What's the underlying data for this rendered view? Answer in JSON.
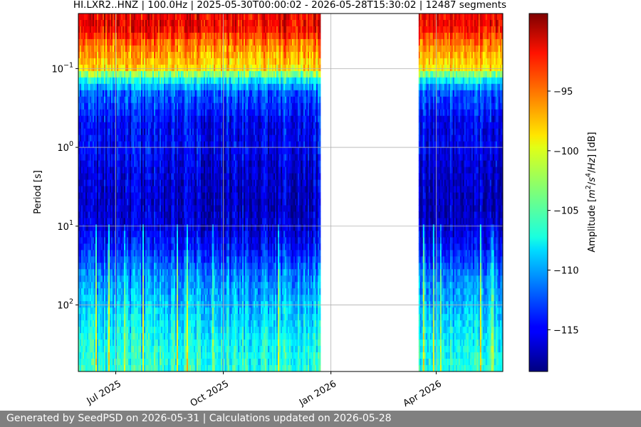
{
  "footer_text": "Generated by SeedPSD on 2026-05-31 | Calculations updated on 2026-05-28",
  "chart_data": {
    "type": "heatmap",
    "title": "HI.LXR2..HNZ | 100.0Hz | 2025-05-30T00:00:02 - 2026-05-28T15:30:02 | 12487 segments",
    "ylabel": "Period [s]",
    "xlabel": "",
    "y_scale": "log",
    "y_inverted": true,
    "ylim": [
      0.02,
      700
    ],
    "xlim": [
      "2025-05-30",
      "2026-05-28"
    ],
    "x_ticks": [
      {
        "date": "2025-07-01",
        "label": "Jul 2025"
      },
      {
        "date": "2025-10-01",
        "label": "Oct 2025"
      },
      {
        "date": "2026-01-01",
        "label": "Jan 2026"
      },
      {
        "date": "2026-04-01",
        "label": "Apr 2026"
      }
    ],
    "y_ticks": [
      {
        "value": 0.1,
        "base": "10",
        "exp": "−1"
      },
      {
        "value": 1,
        "base": "10",
        "exp": "0"
      },
      {
        "value": 10,
        "base": "10",
        "exp": "1"
      },
      {
        "value": 100,
        "base": "10",
        "exp": "2"
      }
    ],
    "grid": true,
    "colormap": "jet",
    "data_segments": [
      {
        "start": "2025-05-30",
        "end": "2025-12-22"
      },
      {
        "start": "2026-03-17",
        "end": "2026-05-28"
      }
    ],
    "amplitude_profile_db": [
      {
        "period": 0.02,
        "db": -92
      },
      {
        "period": 0.03,
        "db": -92
      },
      {
        "period": 0.05,
        "db": -96
      },
      {
        "period": 0.1,
        "db": -99
      },
      {
        "period": 0.13,
        "db": -106
      },
      {
        "period": 0.2,
        "db": -112
      },
      {
        "period": 0.5,
        "db": -115
      },
      {
        "period": 1,
        "db": -115
      },
      {
        "period": 2,
        "db": -116
      },
      {
        "period": 5,
        "db": -116.5
      },
      {
        "period": 10,
        "db": -116
      },
      {
        "period": 20,
        "db": -114
      },
      {
        "period": 40,
        "db": -111
      },
      {
        "period": 100,
        "db": -109
      },
      {
        "period": 300,
        "db": -107
      },
      {
        "period": 700,
        "db": -106
      }
    ],
    "colorbar": {
      "label_parts": [
        "Amplitude [",
        "m",
        "2",
        "/",
        "s",
        "4",
        "/",
        "Hz",
        "] [dB]"
      ],
      "range": [
        -118.5,
        -88.5
      ],
      "ticks": [
        {
          "value": -95,
          "label": "−95"
        },
        {
          "value": -100,
          "label": "−100"
        },
        {
          "value": -105,
          "label": "−105"
        },
        {
          "value": -110,
          "label": "−110"
        },
        {
          "value": -115,
          "label": "−115"
        }
      ]
    }
  }
}
